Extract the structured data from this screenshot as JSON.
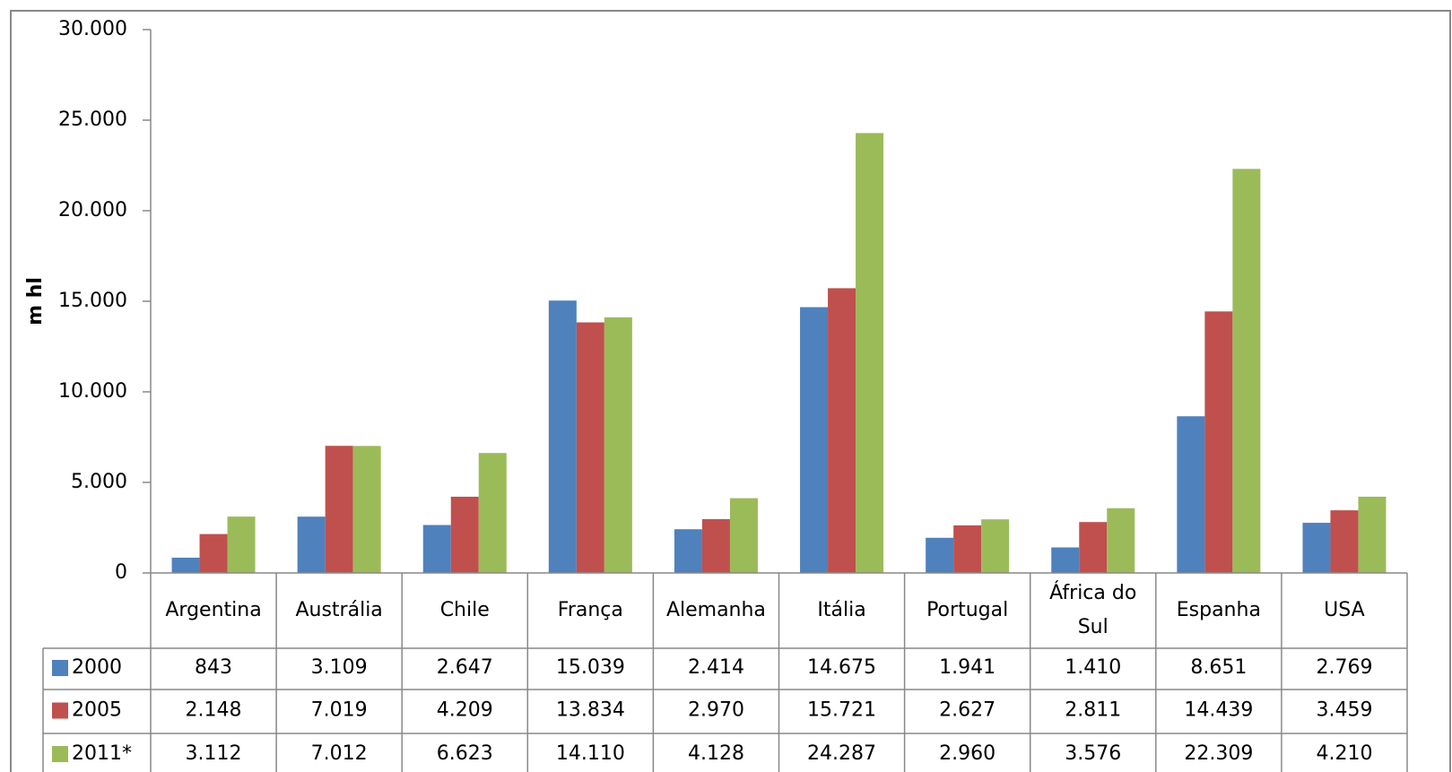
{
  "chart_data": {
    "type": "bar",
    "y_label": "m hl",
    "categories": [
      "Argentina",
      "Austrália",
      "Chile",
      "França",
      "Alemanha",
      "Itália",
      "Portugal",
      "África do Sul",
      "Espanha",
      "USA"
    ],
    "series": [
      {
        "name": "2000",
        "color": "#4f81bd",
        "values": [
          843,
          3109,
          2647,
          15039,
          2414,
          14675,
          1941,
          1410,
          8651,
          2769
        ],
        "value_labels": [
          "843",
          "3.109",
          "2.647",
          "15.039",
          "2.414",
          "14.675",
          "1.941",
          "1.410",
          "8.651",
          "2.769"
        ]
      },
      {
        "name": "2005",
        "color": "#c0504d",
        "values": [
          2148,
          7019,
          4209,
          13834,
          2970,
          15721,
          2627,
          2811,
          14439,
          3459
        ],
        "value_labels": [
          "2.148",
          "7.019",
          "4.209",
          "13.834",
          "2.970",
          "15.721",
          "2.627",
          "2.811",
          "14.439",
          "3.459"
        ]
      },
      {
        "name": "2011*",
        "color": "#9bbb59",
        "values": [
          3112,
          7012,
          6623,
          14110,
          4128,
          24287,
          2960,
          3576,
          22309,
          4210
        ],
        "value_labels": [
          "3.112",
          "7.012",
          "6.623",
          "14.110",
          "4.128",
          "24.287",
          "2.960",
          "3.576",
          "22.309",
          "4.210"
        ]
      }
    ],
    "ylim": [
      0,
      30000
    ],
    "yticks": [
      0,
      {
        "value": 5000,
        "label": "5.000"
      },
      {
        "value": 10000,
        "label": "10.000"
      },
      {
        "value": 15000,
        "label": "15.000"
      },
      {
        "value": 20000,
        "label": "20.000"
      },
      {
        "value": 25000,
        "label": "25.000"
      },
      {
        "value": 30000,
        "label": "30.000"
      }
    ],
    "grid": false
  }
}
